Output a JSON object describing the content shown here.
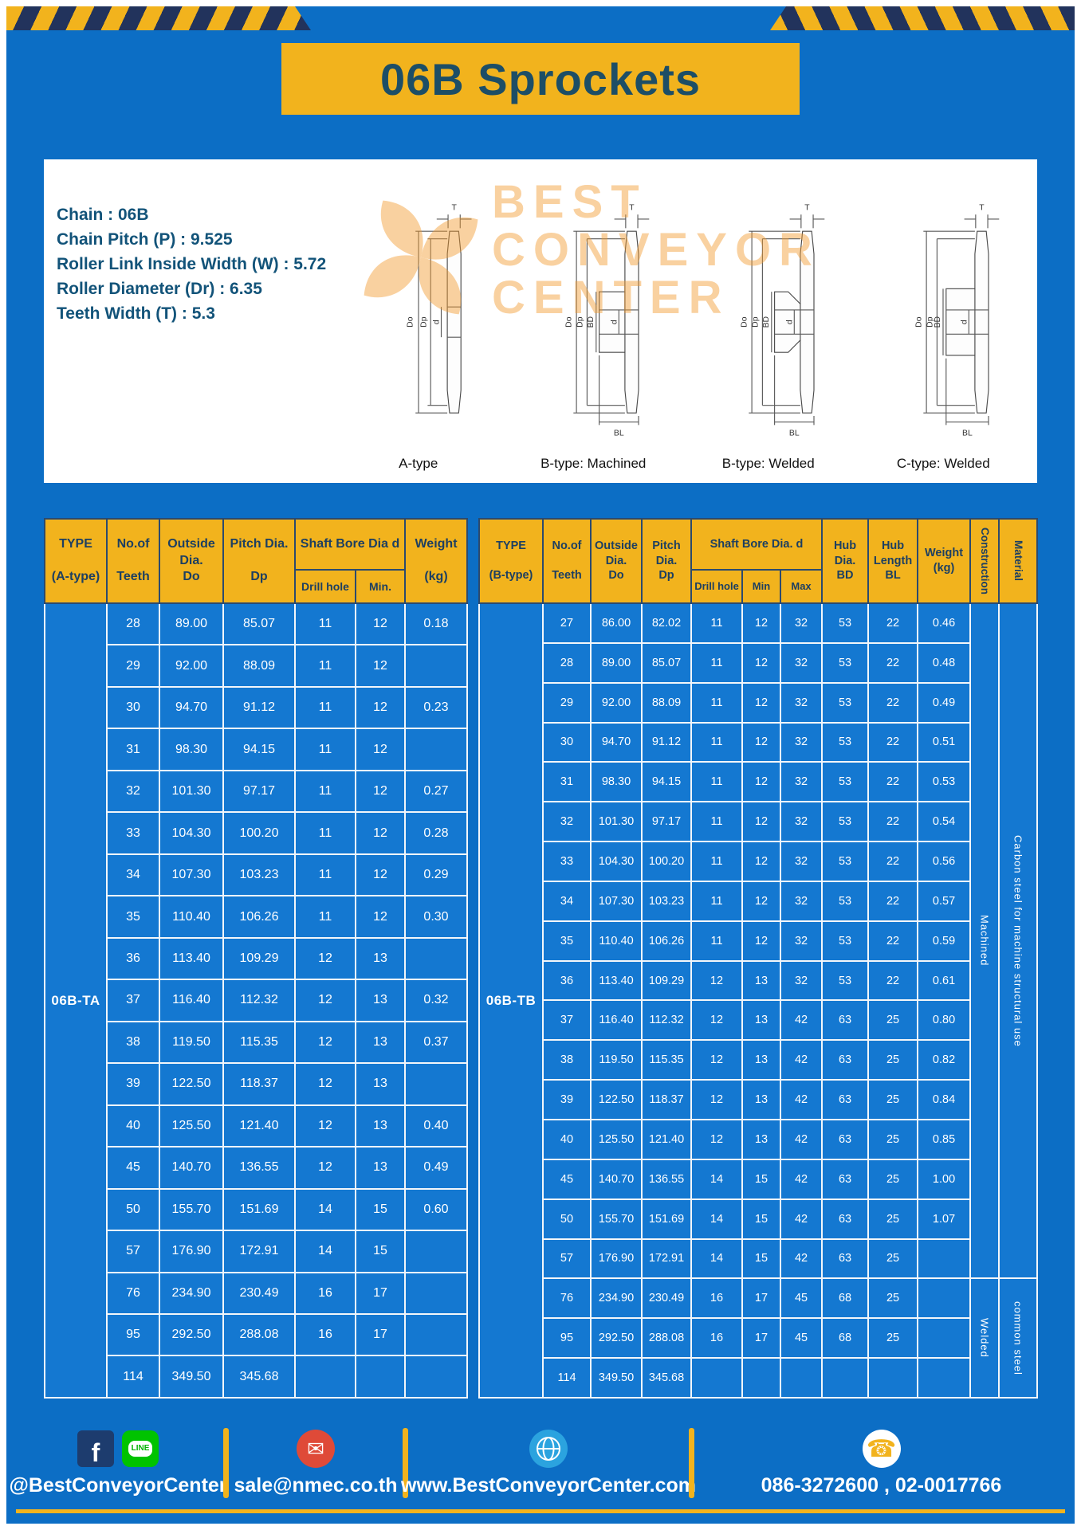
{
  "page": {
    "title": "06B Sprockets"
  },
  "colors": {
    "background_blue": "#0c6ec5",
    "cell_blue": "#1478d1",
    "accent_yellow": "#f2b31d",
    "stripe_navy": "#22335c",
    "header_text_navy": "#1d3f61",
    "title_teal": "#1d4e66",
    "spec_text_blue": "#125379",
    "watermark_orange": "#f29a2e"
  },
  "specs": {
    "lines": [
      "Chain : 06B",
      "Chain Pitch (P) : 9.525",
      "Roller Link Inside Width (W) : 5.72",
      "Roller Diameter (Dr) : 6.35",
      "Teeth Width (T) : 5.3"
    ]
  },
  "watermark": {
    "lines": [
      "BEST",
      "CONVEYOR",
      "CENTER"
    ]
  },
  "drawings": [
    {
      "caption": "A-type",
      "dims": {
        "t": "T",
        "do": "Do",
        "dp": "Dp",
        "d": "d"
      }
    },
    {
      "caption": "B-type: Machined",
      "dims": {
        "t": "T",
        "do": "Do",
        "dp": "Dp",
        "d": "d",
        "bd": "BD",
        "bl": "BL"
      }
    },
    {
      "caption": "B-type: Welded",
      "dims": {
        "t": "T",
        "do": "Do",
        "dp": "Dp",
        "d": "d",
        "bd": "BD",
        "bl": "BL"
      }
    },
    {
      "caption": "C-type: Welded",
      "dims": {
        "t": "T",
        "do": "Do",
        "dp": "Dp",
        "d": "d",
        "bd": "BD",
        "bl": "BL"
      }
    }
  ],
  "table_a": {
    "headers": {
      "type": "TYPE\n\n(A-type)",
      "teeth": "No.of\n\nTeeth",
      "outside": "Outside\nDia.\nDo",
      "pitch": "Pitch Dia.\n\nDp",
      "shaft": "Shaft Bore Dia d",
      "drill": "Drill hole",
      "min": "Min.",
      "weight": "Weight\n\n(kg)"
    },
    "merges": [
      {
        "row": 0,
        "pos": "start",
        "rowspan": 19,
        "text": "06B-TA",
        "cls": "type-cell",
        "name": "type-cell-a"
      }
    ],
    "rows": [
      {
        "teeth": "28",
        "do": "89.00",
        "dp": "85.07",
        "drill": "11",
        "min": "12",
        "weight": "0.18"
      },
      {
        "teeth": "29",
        "do": "92.00",
        "dp": "88.09",
        "drill": "11",
        "min": "12",
        "weight": ""
      },
      {
        "teeth": "30",
        "do": "94.70",
        "dp": "91.12",
        "drill": "11",
        "min": "12",
        "weight": "0.23"
      },
      {
        "teeth": "31",
        "do": "98.30",
        "dp": "94.15",
        "drill": "11",
        "min": "12",
        "weight": ""
      },
      {
        "teeth": "32",
        "do": "101.30",
        "dp": "97.17",
        "drill": "11",
        "min": "12",
        "weight": "0.27"
      },
      {
        "teeth": "33",
        "do": "104.30",
        "dp": "100.20",
        "drill": "11",
        "min": "12",
        "weight": "0.28"
      },
      {
        "teeth": "34",
        "do": "107.30",
        "dp": "103.23",
        "drill": "11",
        "min": "12",
        "weight": "0.29"
      },
      {
        "teeth": "35",
        "do": "110.40",
        "dp": "106.26",
        "drill": "11",
        "min": "12",
        "weight": "0.30"
      },
      {
        "teeth": "36",
        "do": "113.40",
        "dp": "109.29",
        "drill": "12",
        "min": "13",
        "weight": ""
      },
      {
        "teeth": "37",
        "do": "116.40",
        "dp": "112.32",
        "drill": "12",
        "min": "13",
        "weight": "0.32"
      },
      {
        "teeth": "38",
        "do": "119.50",
        "dp": "115.35",
        "drill": "12",
        "min": "13",
        "weight": "0.37"
      },
      {
        "teeth": "39",
        "do": "122.50",
        "dp": "118.37",
        "drill": "12",
        "min": "13",
        "weight": ""
      },
      {
        "teeth": "40",
        "do": "125.50",
        "dp": "121.40",
        "drill": "12",
        "min": "13",
        "weight": "0.40"
      },
      {
        "teeth": "45",
        "do": "140.70",
        "dp": "136.55",
        "drill": "12",
        "min": "13",
        "weight": "0.49"
      },
      {
        "teeth": "50",
        "do": "155.70",
        "dp": "151.69",
        "drill": "14",
        "min": "15",
        "weight": "0.60"
      },
      {
        "teeth": "57",
        "do": "176.90",
        "dp": "172.91",
        "drill": "14",
        "min": "15",
        "weight": ""
      },
      {
        "teeth": "76",
        "do": "234.90",
        "dp": "230.49",
        "drill": "16",
        "min": "17",
        "weight": ""
      },
      {
        "teeth": "95",
        "do": "292.50",
        "dp": "288.08",
        "drill": "16",
        "min": "17",
        "weight": ""
      },
      {
        "teeth": "114",
        "do": "349.50",
        "dp": "345.68",
        "drill": "",
        "min": "",
        "weight": ""
      }
    ]
  },
  "table_b": {
    "headers": {
      "type": "TYPE\n\n(B-type)",
      "teeth": "No.of\n\nTeeth",
      "outside": "Outside\nDia.\nDo",
      "pitch": "Pitch\nDia.\nDp",
      "shaft": "Shaft Bore Dia. d",
      "drill": "Drill hole",
      "min": "Min",
      "max": "Max",
      "bd": "Hub\nDia.\nBD",
      "bl": "Hub\nLength\nBL",
      "weight": "Weight\n(kg)",
      "construction": "Construction",
      "material": "Material"
    },
    "merges": [
      {
        "row": 0,
        "pos": "start",
        "rowspan": 20,
        "text": "06B-TB",
        "cls": "type-cell",
        "name": "type-cell-b"
      },
      {
        "row": 0,
        "pos": "end",
        "rowspan": 17,
        "text": "Machined",
        "cls": "vert-cell",
        "name": "construction-machined"
      },
      {
        "row": 0,
        "pos": "end",
        "rowspan": 17,
        "text": "Carbon steel for machine structural use",
        "cls": "vert-cell",
        "name": "material-carbon-steel"
      },
      {
        "row": 17,
        "pos": "end",
        "rowspan": 3,
        "text": "Welded",
        "cls": "vert-cell",
        "name": "construction-welded"
      },
      {
        "row": 17,
        "pos": "end",
        "rowspan": 3,
        "text": "common steel",
        "cls": "vert-cell",
        "name": "material-common-steel"
      }
    ],
    "rows": [
      {
        "teeth": "27",
        "do": "86.00",
        "dp": "82.02",
        "drill": "11",
        "min": "12",
        "max": "32",
        "bd": "53",
        "bl": "22",
        "weight": "0.46"
      },
      {
        "teeth": "28",
        "do": "89.00",
        "dp": "85.07",
        "drill": "11",
        "min": "12",
        "max": "32",
        "bd": "53",
        "bl": "22",
        "weight": "0.48"
      },
      {
        "teeth": "29",
        "do": "92.00",
        "dp": "88.09",
        "drill": "11",
        "min": "12",
        "max": "32",
        "bd": "53",
        "bl": "22",
        "weight": "0.49"
      },
      {
        "teeth": "30",
        "do": "94.70",
        "dp": "91.12",
        "drill": "11",
        "min": "12",
        "max": "32",
        "bd": "53",
        "bl": "22",
        "weight": "0.51"
      },
      {
        "teeth": "31",
        "do": "98.30",
        "dp": "94.15",
        "drill": "11",
        "min": "12",
        "max": "32",
        "bd": "53",
        "bl": "22",
        "weight": "0.53"
      },
      {
        "teeth": "32",
        "do": "101.30",
        "dp": "97.17",
        "drill": "11",
        "min": "12",
        "max": "32",
        "bd": "53",
        "bl": "22",
        "weight": "0.54"
      },
      {
        "teeth": "33",
        "do": "104.30",
        "dp": "100.20",
        "drill": "11",
        "min": "12",
        "max": "32",
        "bd": "53",
        "bl": "22",
        "weight": "0.56"
      },
      {
        "teeth": "34",
        "do": "107.30",
        "dp": "103.23",
        "drill": "11",
        "min": "12",
        "max": "32",
        "bd": "53",
        "bl": "22",
        "weight": "0.57"
      },
      {
        "teeth": "35",
        "do": "110.40",
        "dp": "106.26",
        "drill": "11",
        "min": "12",
        "max": "32",
        "bd": "53",
        "bl": "22",
        "weight": "0.59"
      },
      {
        "teeth": "36",
        "do": "113.40",
        "dp": "109.29",
        "drill": "12",
        "min": "13",
        "max": "32",
        "bd": "53",
        "bl": "22",
        "weight": "0.61"
      },
      {
        "teeth": "37",
        "do": "116.40",
        "dp": "112.32",
        "drill": "12",
        "min": "13",
        "max": "42",
        "bd": "63",
        "bl": "25",
        "weight": "0.80"
      },
      {
        "teeth": "38",
        "do": "119.50",
        "dp": "115.35",
        "drill": "12",
        "min": "13",
        "max": "42",
        "bd": "63",
        "bl": "25",
        "weight": "0.82"
      },
      {
        "teeth": "39",
        "do": "122.50",
        "dp": "118.37",
        "drill": "12",
        "min": "13",
        "max": "42",
        "bd": "63",
        "bl": "25",
        "weight": "0.84"
      },
      {
        "teeth": "40",
        "do": "125.50",
        "dp": "121.40",
        "drill": "12",
        "min": "13",
        "max": "42",
        "bd": "63",
        "bl": "25",
        "weight": "0.85"
      },
      {
        "teeth": "45",
        "do": "140.70",
        "dp": "136.55",
        "drill": "14",
        "min": "15",
        "max": "42",
        "bd": "63",
        "bl": "25",
        "weight": "1.00"
      },
      {
        "teeth": "50",
        "do": "155.70",
        "dp": "151.69",
        "drill": "14",
        "min": "15",
        "max": "42",
        "bd": "63",
        "bl": "25",
        "weight": "1.07"
      },
      {
        "teeth": "57",
        "do": "176.90",
        "dp": "172.91",
        "drill": "14",
        "min": "15",
        "max": "42",
        "bd": "63",
        "bl": "25",
        "weight": ""
      },
      {
        "teeth": "76",
        "do": "234.90",
        "dp": "230.49",
        "drill": "16",
        "min": "17",
        "max": "45",
        "bd": "68",
        "bl": "25",
        "weight": ""
      },
      {
        "teeth": "95",
        "do": "292.50",
        "dp": "288.08",
        "drill": "16",
        "min": "17",
        "max": "45",
        "bd": "68",
        "bl": "25",
        "weight": ""
      },
      {
        "teeth": "114",
        "do": "349.50",
        "dp": "345.68",
        "drill": "",
        "min": "",
        "max": "",
        "bd": "",
        "bl": "",
        "weight": ""
      }
    ]
  },
  "footer": {
    "social": "@BestConveyorCenter",
    "email": "sale@nmec.co.th",
    "website": "www.BestConveyorCenter.com",
    "phones": "086-3272600 , 02-0017766",
    "icons": {
      "facebook": "f",
      "line": "LINE",
      "email": "✉",
      "phone": "☎"
    }
  }
}
